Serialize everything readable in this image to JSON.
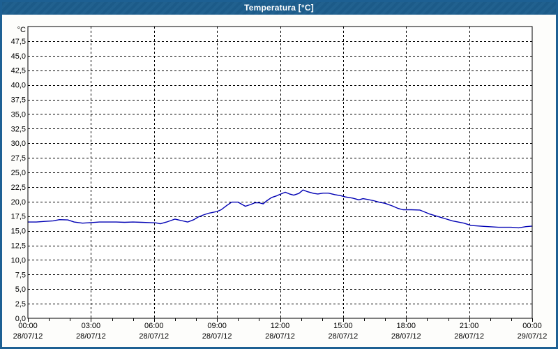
{
  "window": {
    "title": "Temperatura [°C]",
    "colors": {
      "frame": "#1d6093",
      "titlebar": "#21618f",
      "title_text": "#ffffff",
      "plot_background": "#ffffff",
      "grid": "#000000",
      "axis": "#000000",
      "series_line": "#0000b4"
    }
  },
  "chart_data": {
    "type": "line",
    "title": "Temperatura [°C]",
    "grid": {
      "style": "dashed",
      "on": true
    },
    "legend": "none",
    "y_axis": {
      "unit_label": "°C",
      "min": 0,
      "max": 50,
      "tick_step": 2.5,
      "tick_labels": [
        "0,0",
        "2,5",
        "5,0",
        "7,5",
        "10,0",
        "12,5",
        "15,0",
        "17,5",
        "20,0",
        "22,5",
        "25,0",
        "27,5",
        "30,0",
        "32,5",
        "35,0",
        "37,5",
        "40,0",
        "42,5",
        "45,0",
        "47,5"
      ]
    },
    "x_axis": {
      "span_hours": 24,
      "major_step_hours": 3,
      "minor_step_hours": 1,
      "tick_times": [
        "00:00",
        "03:00",
        "06:00",
        "09:00",
        "12:00",
        "15:00",
        "18:00",
        "21:00",
        "00:00"
      ],
      "tick_dates": [
        "28/07/12",
        "28/07/12",
        "28/07/12",
        "28/07/12",
        "28/07/12",
        "28/07/12",
        "28/07/12",
        "28/07/12",
        "29/07/12"
      ]
    },
    "series": [
      {
        "name": "Temperatura",
        "color": "#0000b4",
        "points": [
          [
            0.0,
            16.5
          ],
          [
            0.4,
            16.5
          ],
          [
            0.8,
            16.6
          ],
          [
            1.2,
            16.7
          ],
          [
            1.5,
            16.9
          ],
          [
            1.9,
            16.85
          ],
          [
            2.2,
            16.5
          ],
          [
            2.6,
            16.3
          ],
          [
            3.0,
            16.4
          ],
          [
            3.4,
            16.5
          ],
          [
            3.8,
            16.5
          ],
          [
            4.2,
            16.5
          ],
          [
            4.6,
            16.45
          ],
          [
            5.0,
            16.5
          ],
          [
            5.4,
            16.45
          ],
          [
            5.8,
            16.4
          ],
          [
            6.1,
            16.35
          ],
          [
            6.3,
            16.2
          ],
          [
            6.6,
            16.5
          ],
          [
            7.0,
            17.0
          ],
          [
            7.3,
            16.75
          ],
          [
            7.6,
            16.5
          ],
          [
            7.9,
            16.9
          ],
          [
            8.1,
            17.35
          ],
          [
            8.35,
            17.7
          ],
          [
            8.6,
            18.0
          ],
          [
            8.8,
            18.15
          ],
          [
            9.0,
            18.3
          ],
          [
            9.2,
            18.6
          ],
          [
            9.45,
            19.3
          ],
          [
            9.7,
            19.9
          ],
          [
            10.0,
            19.9
          ],
          [
            10.2,
            19.5
          ],
          [
            10.35,
            19.2
          ],
          [
            10.6,
            19.5
          ],
          [
            10.8,
            19.8
          ],
          [
            11.0,
            19.8
          ],
          [
            11.2,
            19.6
          ],
          [
            11.35,
            20.1
          ],
          [
            11.6,
            20.7
          ],
          [
            11.85,
            21.0
          ],
          [
            12.0,
            21.25
          ],
          [
            12.25,
            21.6
          ],
          [
            12.45,
            21.3
          ],
          [
            12.65,
            21.1
          ],
          [
            12.9,
            21.4
          ],
          [
            13.1,
            22.0
          ],
          [
            13.3,
            21.7
          ],
          [
            13.6,
            21.4
          ],
          [
            13.8,
            21.3
          ],
          [
            14.05,
            21.45
          ],
          [
            14.3,
            21.45
          ],
          [
            14.6,
            21.2
          ],
          [
            14.9,
            21.0
          ],
          [
            15.1,
            20.8
          ],
          [
            15.45,
            20.6
          ],
          [
            15.75,
            20.3
          ],
          [
            15.95,
            20.5
          ],
          [
            16.2,
            20.35
          ],
          [
            16.45,
            20.15
          ],
          [
            16.7,
            19.9
          ],
          [
            17.0,
            19.7
          ],
          [
            17.35,
            19.25
          ],
          [
            17.6,
            18.85
          ],
          [
            17.85,
            18.6
          ],
          [
            18.25,
            18.6
          ],
          [
            18.65,
            18.55
          ],
          [
            19.1,
            17.9
          ],
          [
            19.65,
            17.3
          ],
          [
            20.2,
            16.7
          ],
          [
            20.75,
            16.3
          ],
          [
            21.1,
            15.9
          ],
          [
            21.7,
            15.75
          ],
          [
            22.4,
            15.6
          ],
          [
            23.0,
            15.6
          ],
          [
            23.35,
            15.5
          ],
          [
            23.7,
            15.7
          ],
          [
            24.0,
            15.8
          ]
        ]
      }
    ]
  }
}
